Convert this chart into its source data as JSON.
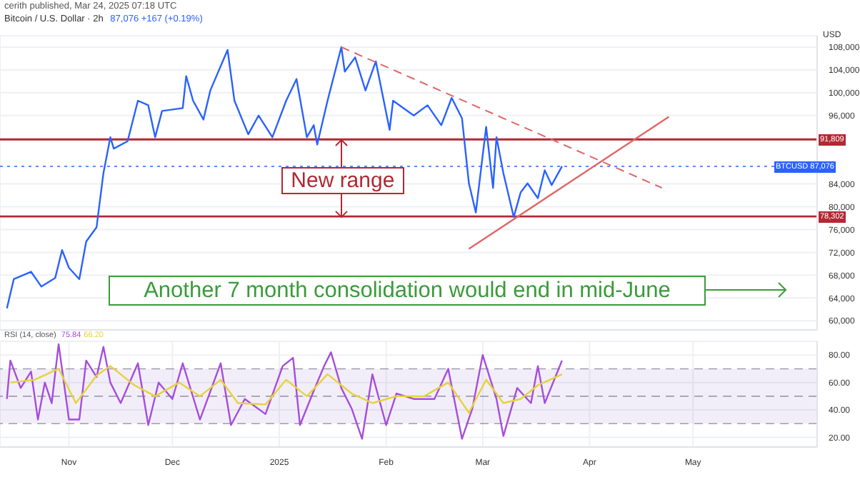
{
  "chart_data": [
    {
      "type": "line",
      "title": "Bitcoin / U.S. Dollar · 2h",
      "subtitle": "87,076 +167 (+0.19%)",
      "ylabel": "USD",
      "xlim": [
        "2024-10-12",
        "2025-06-06"
      ],
      "xticks": [
        {
          "value": "2024-11-01",
          "label": null
        },
        {
          "value": "2024-12-01",
          "label": null
        },
        {
          "value": "2025-01-01",
          "label": null
        },
        {
          "value": "2025-02-01",
          "label": null
        },
        {
          "value": "2025-03-01",
          "label": null
        },
        {
          "value": "2025-04-01",
          "label": null
        },
        {
          "value": "2025-05-01",
          "label": null
        }
      ],
      "ylim": [
        58400,
        110000
      ],
      "yticks": [
        {
          "value": 60000,
          "label": "60,000"
        },
        {
          "value": 64000,
          "label": "64,000"
        },
        {
          "value": 68000,
          "label": "68,000"
        },
        {
          "value": 72000,
          "label": "72,000"
        },
        {
          "value": 76000,
          "label": "76,000"
        },
        {
          "value": 80000,
          "label": "80,000"
        },
        {
          "value": 84000,
          "label": "84,000"
        },
        {
          "value": 96000,
          "label": "96,000"
        },
        {
          "value": 100000,
          "label": "100,000"
        },
        {
          "value": 104000,
          "label": "104,000"
        },
        {
          "value": 108000,
          "label": "108,000"
        }
      ],
      "tick_labels": "y",
      "grid": true,
      "series": [
        {
          "color": "#2962ff",
          "x": [
            "2024-10-14",
            "2024-10-16",
            "2024-10-21",
            "2024-10-24",
            "2024-10-28",
            "2024-10-30",
            "2024-11-01",
            "2024-11-04",
            "2024-11-06",
            "2024-11-09",
            "2024-11-11",
            "2024-11-13",
            "2024-11-14",
            "2024-11-18",
            "2024-11-21",
            "2024-11-24",
            "2024-11-26",
            "2024-11-28",
            "2024-12-04",
            "2024-12-05",
            "2024-12-07",
            "2024-12-10",
            "2024-12-12",
            "2024-12-17",
            "2024-12-19",
            "2024-12-23",
            "2024-12-26",
            "2024-12-30",
            "2025-01-03",
            "2025-01-06",
            "2025-01-09",
            "2025-01-11",
            "2025-01-12",
            "2025-01-15",
            "2025-01-19",
            "2025-01-20",
            "2025-01-23",
            "2025-01-26",
            "2025-01-29",
            "2025-02-02",
            "2025-02-03",
            "2025-02-09",
            "2025-02-13",
            "2025-02-17",
            "2025-02-20",
            "2025-02-23",
            "2025-02-25",
            "2025-02-27",
            "2025-03-02",
            "2025-03-04",
            "2025-03-05",
            "2025-03-07",
            "2025-03-10",
            "2025-03-12",
            "2025-03-14",
            "2025-03-17",
            "2025-03-19",
            "2025-03-21",
            "2025-03-24"
          ],
          "values": [
            62200,
            67300,
            68600,
            66000,
            67500,
            72400,
            69300,
            67300,
            73900,
            76400,
            85900,
            92200,
            90200,
            91500,
            98600,
            97800,
            92200,
            96800,
            97300,
            102900,
            98600,
            95300,
            100400,
            107500,
            98600,
            92700,
            96000,
            92200,
            98600,
            102400,
            92200,
            94300,
            90900,
            98600,
            108000,
            103700,
            106200,
            100400,
            105500,
            93500,
            98600,
            96000,
            97800,
            94300,
            99100,
            95500,
            84100,
            79000,
            94000,
            83300,
            92200,
            85900,
            78200,
            82500,
            84100,
            81500,
            86400,
            83800,
            87100
          ]
        },
        {
          "color": "#e06666",
          "line_style": "dashed",
          "x": [
            "2025-01-19",
            "2025-04-22"
          ],
          "values": [
            108000,
            83300
          ]
        },
        {
          "color": "#e06666",
          "x": [
            "2025-02-25",
            "2025-04-24"
          ],
          "values": [
            72600,
            95800
          ]
        }
      ],
      "ref_lines": [
        {
          "axis": "y",
          "value": 91809,
          "label": "91,809",
          "color": "#b22833"
        },
        {
          "axis": "y",
          "value": 78302,
          "label": "78,302",
          "color": "#b22833"
        },
        {
          "axis": "y",
          "value": 87076,
          "label": "BTCUSD 87,076",
          "color": "#2962ff",
          "line_style": "dotted"
        }
      ],
      "annotations": [
        "cerith published, Mar 24, 2025 07:18 UTC",
        "New range",
        "Another 7 month consolidation would end in mid-June"
      ]
    },
    {
      "type": "line",
      "legend_title": "RSI (14, close)",
      "legend": "top left",
      "xlim": [
        "2024-10-12",
        "2025-06-06"
      ],
      "xticks": [
        {
          "value": "2024-11-01",
          "label": "Nov"
        },
        {
          "value": "2024-12-01",
          "label": "Dec"
        },
        {
          "value": "2025-01-01",
          "label": "2025"
        },
        {
          "value": "2025-02-01",
          "label": "Feb"
        },
        {
          "value": "2025-03-01",
          "label": "Mar"
        },
        {
          "value": "2025-04-01",
          "label": "Apr"
        },
        {
          "value": "2025-05-01",
          "label": "May"
        }
      ],
      "ylim": [
        13,
        90
      ],
      "yticks": [
        {
          "value": 20,
          "label": "20.00"
        },
        {
          "value": 40,
          "label": "40.00"
        },
        {
          "value": 60,
          "label": "60.00"
        },
        {
          "value": 80,
          "label": "80.00"
        }
      ],
      "grid": true,
      "series": [
        {
          "name": "75.84",
          "color": "#a64ddd",
          "x": [
            "2024-10-14",
            "2024-10-15",
            "2024-10-18",
            "2024-10-21",
            "2024-10-23",
            "2024-10-25",
            "2024-10-27",
            "2024-10-29",
            "2024-11-01",
            "2024-11-04",
            "2024-11-06",
            "2024-11-09",
            "2024-11-11",
            "2024-11-13",
            "2024-11-16",
            "2024-11-21",
            "2024-11-24",
            "2024-11-27",
            "2024-12-01",
            "2024-12-04",
            "2024-12-09",
            "2024-12-15",
            "2024-12-18",
            "2024-12-22",
            "2024-12-28",
            "2025-01-02",
            "2025-01-05",
            "2025-01-07",
            "2025-01-11",
            "2025-01-14",
            "2025-01-16",
            "2025-01-19",
            "2025-01-22",
            "2025-01-25",
            "2025-01-28",
            "2025-02-01",
            "2025-02-04",
            "2025-02-09",
            "2025-02-15",
            "2025-02-19",
            "2025-02-23",
            "2025-02-26",
            "2025-03-01",
            "2025-03-05",
            "2025-03-07",
            "2025-03-11",
            "2025-03-15",
            "2025-03-17",
            "2025-03-19",
            "2025-03-24"
          ],
          "values": [
            48,
            76,
            56,
            68,
            33,
            60,
            45,
            88,
            33,
            33,
            76,
            64,
            86,
            60,
            45,
            74,
            29,
            60,
            48,
            74,
            33,
            74,
            29,
            48,
            37,
            72,
            78,
            29,
            54,
            72,
            82,
            56,
            41,
            19,
            66,
            29,
            52,
            48,
            48,
            70,
            19,
            41,
            80,
            48,
            21,
            56,
            45,
            72,
            45,
            76
          ]
        },
        {
          "name": "66.20",
          "color": "#e6d33a",
          "x": [
            "2024-10-15",
            "2024-10-22",
            "2024-10-29",
            "2024-11-03",
            "2024-11-09",
            "2024-11-13",
            "2024-11-20",
            "2024-11-26",
            "2024-12-03",
            "2024-12-09",
            "2024-12-15",
            "2024-12-20",
            "2024-12-28",
            "2025-01-03",
            "2025-01-09",
            "2025-01-15",
            "2025-01-22",
            "2025-01-28",
            "2025-02-04",
            "2025-02-12",
            "2025-02-19",
            "2025-02-25",
            "2025-03-02",
            "2025-03-07",
            "2025-03-12",
            "2025-03-17",
            "2025-03-24"
          ],
          "values": [
            60,
            62,
            70,
            45,
            65,
            72,
            58,
            50,
            60,
            50,
            62,
            45,
            44,
            62,
            50,
            66,
            52,
            45,
            50,
            50,
            60,
            38,
            62,
            45,
            48,
            58,
            66
          ]
        }
      ],
      "bands": [
        {
          "axis": "y",
          "from": 30,
          "to": 70,
          "color": "#7e57c2"
        }
      ],
      "ref_lines": [
        {
          "axis": "y",
          "value": 70,
          "color": "#9e9eb0",
          "line_style": "dashed"
        },
        {
          "axis": "y",
          "value": 50,
          "color": "#9e9eb0",
          "line_style": "dashed"
        },
        {
          "axis": "y",
          "value": 30,
          "color": "#9e9eb0",
          "line_style": "dashed"
        }
      ]
    }
  ]
}
